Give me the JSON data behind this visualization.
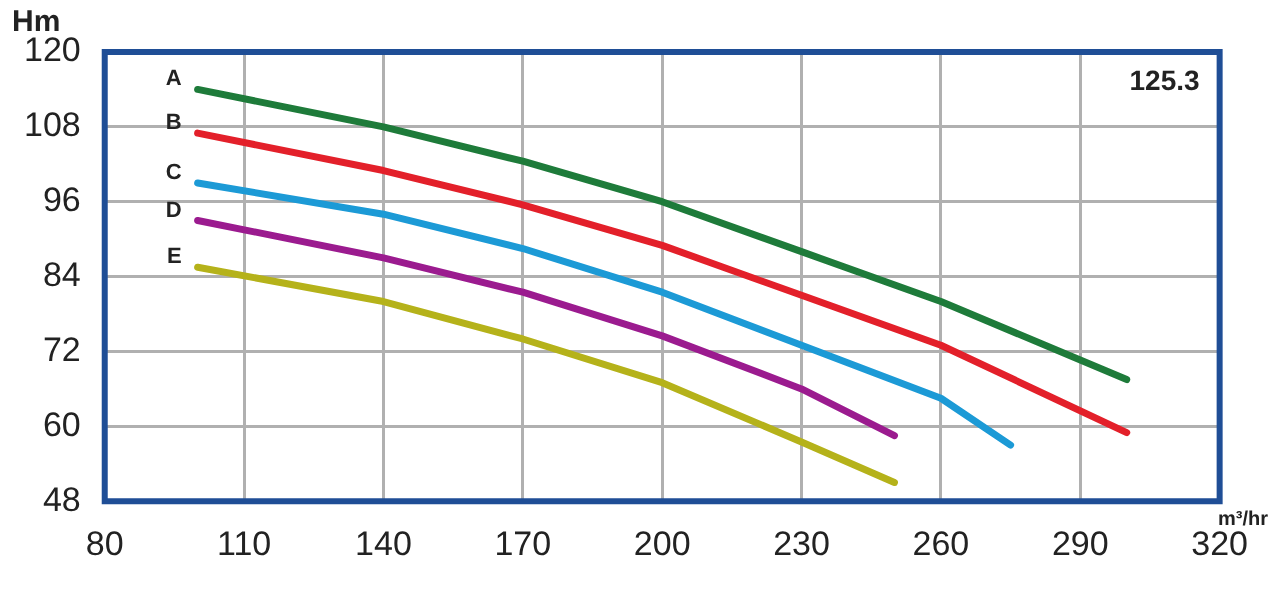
{
  "chart_data": {
    "type": "line",
    "ylabel": "Hm",
    "xlabel": "m³/hr",
    "annotations": [
      "125.3"
    ],
    "xlim": [
      80,
      320
    ],
    "xticks": [
      80,
      110,
      140,
      170,
      200,
      230,
      260,
      290,
      320
    ],
    "ylim": [
      48,
      120
    ],
    "yticks": [
      48,
      60,
      72,
      84,
      96,
      108,
      120
    ],
    "grid": true,
    "legend": false,
    "marker": "none",
    "line_style": "solid",
    "series": [
      {
        "name": "A",
        "color": "#1e7b3a",
        "x": [
          100,
          140,
          170,
          200,
          230,
          260,
          300
        ],
        "values": [
          114,
          108,
          102.5,
          96,
          88,
          80,
          67.5
        ]
      },
      {
        "name": "B",
        "color": "#e3202a",
        "x": [
          100,
          140,
          170,
          200,
          230,
          260,
          300
        ],
        "values": [
          107,
          101,
          95.5,
          89,
          81,
          73,
          59
        ]
      },
      {
        "name": "C",
        "color": "#1c9ad6",
        "x": [
          100,
          140,
          170,
          200,
          230,
          260,
          275
        ],
        "values": [
          99,
          94,
          88.5,
          81.5,
          73,
          64.5,
          57
        ]
      },
      {
        "name": "D",
        "color": "#9b1b8f",
        "x": [
          100,
          140,
          170,
          200,
          230,
          250
        ],
        "values": [
          93,
          87,
          81.5,
          74.5,
          66,
          58.5
        ]
      },
      {
        "name": "E",
        "color": "#b5b21a",
        "x": [
          100,
          140,
          170,
          200,
          230,
          250
        ],
        "values": [
          85.5,
          80,
          74,
          67,
          57.5,
          51
        ]
      }
    ]
  }
}
